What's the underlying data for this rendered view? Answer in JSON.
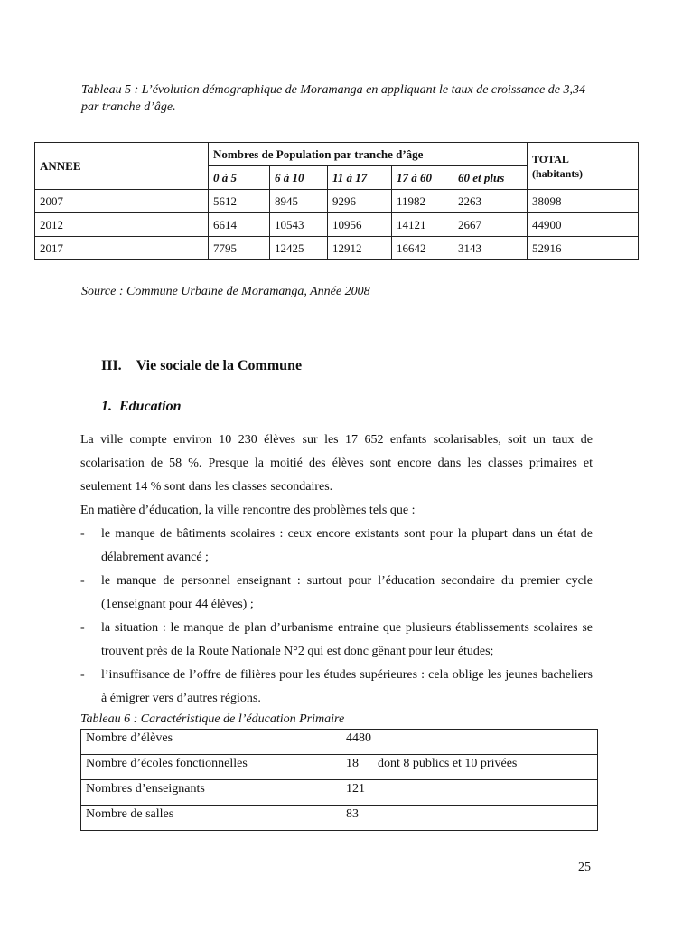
{
  "table5": {
    "caption": "Tableau 5 : L’évolution démographique de Moramanga en appliquant le taux de croissance de 3,34 par tranche d’âge.",
    "col_year": "ANNEE",
    "group_header": "Nombres de Population par tranche d’âge",
    "total_header": "TOTAL",
    "total_sub": "(habitants)",
    "age_groups": [
      "0 à 5",
      "6  à 10",
      "11 à 17",
      "17 à 60",
      "60 et plus"
    ],
    "rows": [
      {
        "year": "2007",
        "values": [
          "5612",
          "8945",
          "9296",
          "11982",
          "2263"
        ],
        "total": "38098"
      },
      {
        "year": "2012",
        "values": [
          "6614",
          "10543",
          "10956",
          "14121",
          "2667"
        ],
        "total": "44900"
      },
      {
        "year": "2017",
        "values": [
          "7795",
          "12425",
          "12912",
          "16642",
          "3143"
        ],
        "total": "52916"
      }
    ],
    "source": "Source : Commune Urbaine de Moramanga, Année 2008"
  },
  "section": {
    "number": "III.",
    "title": "Vie sociale de la Commune"
  },
  "subsection": {
    "number": "1.",
    "title": "Education"
  },
  "body": {
    "p1": "La ville compte environ 10 230 élèves sur les 17 652 enfants scolarisables, soit un taux de scolarisation de 58 %. Presque la moitié des élèves sont encore dans les classes primaires et seulement 14 % sont dans les classes secondaires.",
    "p2": "En matière d’éducation, la ville rencontre des problèmes tels que :",
    "bullet": "-",
    "items": [
      "le manque de bâtiments scolaires : ceux encore existants sont pour la plupart dans un état de délabrement avancé ;",
      "le manque de personnel enseignant : surtout pour l’éducation secondaire du premier cycle (1enseignant pour 44 élèves) ;",
      "la situation : le manque de plan d’urbanisme entraine que plusieurs établissements scolaires se trouvent près de la Route Nationale N°2 qui est donc gênant pour leur études;",
      "l’insuffisance de l’offre de filières pour les études supérieures : cela oblige les jeunes bacheliers à émigrer vers d’autres régions."
    ]
  },
  "table6": {
    "caption": "Tableau 6 : Caractéristique de l’éducation Primaire",
    "rows": [
      {
        "label": "Nombre d’élèves",
        "value": "4480",
        "note": ""
      },
      {
        "label": "Nombre d’écoles fonctionnelles",
        "value": "18",
        "note": "dont 8 publics et 10 privées"
      },
      {
        "label": "Nombres d’enseignants",
        "value": "121",
        "note": ""
      },
      {
        "label": "Nombre de salles",
        "value": "83",
        "note": ""
      }
    ]
  },
  "page_number": "25"
}
